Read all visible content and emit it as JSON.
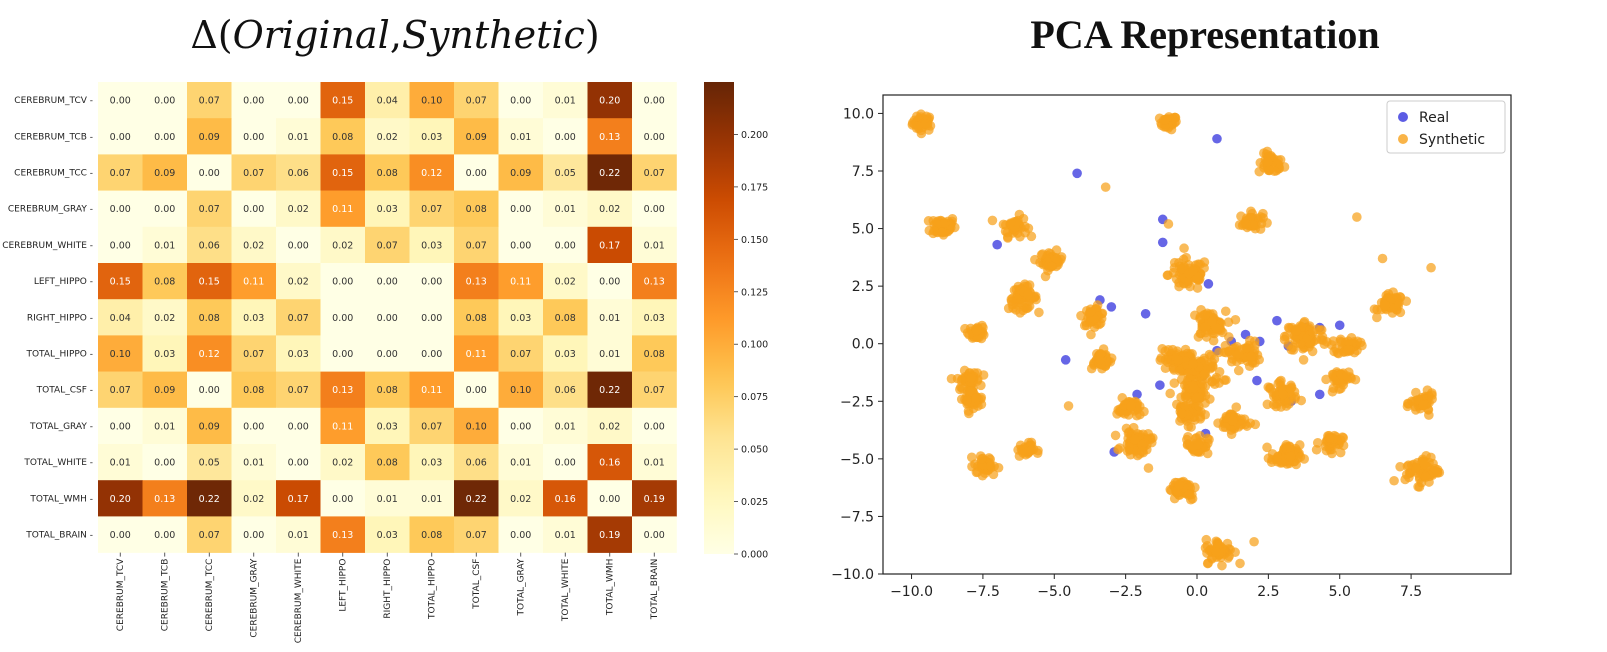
{
  "titles": {
    "left_prefix": "Δ(",
    "left_original": "Original",
    "left_comma": ",",
    "left_synthetic": "Synthetic",
    "left_suffix": ")",
    "right": "PCA Representation"
  },
  "chart_data": [
    {
      "type": "heatmap",
      "title": "Δ(Original, Synthetic)",
      "rows": [
        "CEREBRUM_TCV",
        "CEREBRUM_TCB",
        "CEREBRUM_TCC",
        "CEREBRUM_GRAY",
        "CEREBRUM_WHITE",
        "LEFT_HIPPO",
        "RIGHT_HIPPO",
        "TOTAL_HIPPO",
        "TOTAL_CSF",
        "TOTAL_GRAY",
        "TOTAL_WHITE",
        "TOTAL_WMH",
        "TOTAL_BRAIN"
      ],
      "columns": [
        "CEREBRUM_TCV",
        "CEREBRUM_TCB",
        "CEREBRUM_TCC",
        "CEREBRUM_GRAY",
        "CEREBRUM_WHITE",
        "LEFT_HIPPO",
        "RIGHT_HIPPO",
        "TOTAL_HIPPO",
        "TOTAL_CSF",
        "TOTAL_GRAY",
        "TOTAL_WHITE",
        "TOTAL_WMH",
        "TOTAL_BRAIN"
      ],
      "values": [
        [
          0.0,
          0.0,
          0.07,
          0.0,
          0.0,
          0.15,
          0.04,
          0.1,
          0.07,
          0.0,
          0.01,
          0.2,
          0.0
        ],
        [
          0.0,
          0.0,
          0.09,
          0.0,
          0.01,
          0.08,
          0.02,
          0.03,
          0.09,
          0.01,
          0.0,
          0.13,
          0.0
        ],
        [
          0.07,
          0.09,
          0.0,
          0.07,
          0.06,
          0.15,
          0.08,
          0.12,
          0.0,
          0.09,
          0.05,
          0.22,
          0.07
        ],
        [
          0.0,
          0.0,
          0.07,
          0.0,
          0.02,
          0.11,
          0.03,
          0.07,
          0.08,
          0.0,
          0.01,
          0.02,
          0.0
        ],
        [
          0.0,
          0.01,
          0.06,
          0.02,
          0.0,
          0.02,
          0.07,
          0.03,
          0.07,
          0.0,
          0.0,
          0.17,
          0.01
        ],
        [
          0.15,
          0.08,
          0.15,
          0.11,
          0.02,
          0.0,
          0.0,
          0.0,
          0.13,
          0.11,
          0.02,
          0.0,
          0.13
        ],
        [
          0.04,
          0.02,
          0.08,
          0.03,
          0.07,
          0.0,
          0.0,
          0.0,
          0.08,
          0.03,
          0.08,
          0.01,
          0.03
        ],
        [
          0.1,
          0.03,
          0.12,
          0.07,
          0.03,
          0.0,
          0.0,
          0.0,
          0.11,
          0.07,
          0.03,
          0.01,
          0.08
        ],
        [
          0.07,
          0.09,
          0.0,
          0.08,
          0.07,
          0.13,
          0.08,
          0.11,
          0.0,
          0.1,
          0.06,
          0.22,
          0.07
        ],
        [
          0.0,
          0.01,
          0.09,
          0.0,
          0.0,
          0.11,
          0.03,
          0.07,
          0.1,
          0.0,
          0.01,
          0.02,
          0.0
        ],
        [
          0.01,
          0.0,
          0.05,
          0.01,
          0.0,
          0.02,
          0.08,
          0.03,
          0.06,
          0.01,
          0.0,
          0.16,
          0.01
        ],
        [
          0.2,
          0.13,
          0.22,
          0.02,
          0.17,
          0.0,
          0.01,
          0.01,
          0.22,
          0.02,
          0.16,
          0.0,
          0.19
        ],
        [
          0.0,
          0.0,
          0.07,
          0.0,
          0.01,
          0.13,
          0.03,
          0.08,
          0.07,
          0.0,
          0.01,
          0.19,
          0.0
        ]
      ],
      "colorbar": {
        "min": 0.0,
        "max": 0.225,
        "ticks": [
          "0.000",
          "0.025",
          "0.050",
          "0.075",
          "0.100",
          "0.125",
          "0.150",
          "0.175",
          "0.200"
        ],
        "cmap": [
          "#ffffe5",
          "#fff7bc",
          "#fee391",
          "#fec44f",
          "#fe9929",
          "#ec7014",
          "#cc4c02",
          "#993404",
          "#662506"
        ]
      }
    },
    {
      "type": "scatter",
      "title": "PCA Representation",
      "xlim": [
        -11,
        11
      ],
      "ylim": [
        -10,
        10.8
      ],
      "xticks": [
        "-10.0",
        "-7.5",
        "-5.0",
        "-2.5",
        "0.0",
        "2.5",
        "5.0",
        "7.5"
      ],
      "yticks": [
        "10.0",
        "7.5",
        "5.0",
        "2.5",
        "0.0",
        "-2.5",
        "-5.0",
        "-7.5",
        "-10.0"
      ],
      "legend_position": "top-right",
      "series": [
        {
          "name": "Real",
          "color": "#3333dd",
          "points": [
            [
              0.7,
              8.9
            ],
            [
              -4.2,
              7.4
            ],
            [
              -7.0,
              4.3
            ],
            [
              -1.2,
              5.4
            ],
            [
              -1.2,
              4.4
            ],
            [
              0.4,
              2.6
            ],
            [
              -3.4,
              1.9
            ],
            [
              -3.0,
              1.6
            ],
            [
              -1.8,
              1.3
            ],
            [
              -4.6,
              -0.7
            ],
            [
              -3.3,
              -0.8
            ],
            [
              -1.3,
              -1.8
            ],
            [
              -2.1,
              -2.2
            ],
            [
              -2.9,
              -4.7
            ],
            [
              0.2,
              -1.4
            ],
            [
              0.7,
              -0.3
            ],
            [
              1.7,
              0.4
            ],
            [
              1.2,
              0.1
            ],
            [
              2.2,
              0.1
            ],
            [
              2.8,
              1.0
            ],
            [
              3.2,
              -0.1
            ],
            [
              3.8,
              0.7
            ],
            [
              4.3,
              0.7
            ],
            [
              5.0,
              0.8
            ],
            [
              3.3,
              -2.5
            ],
            [
              4.3,
              -2.2
            ],
            [
              2.1,
              -1.6
            ],
            [
              0.3,
              -3.9
            ],
            [
              1.0,
              -9.0
            ]
          ]
        },
        {
          "name": "Synthetic",
          "color": "#f7a11a",
          "clusters": [
            [
              -9.6,
              9.6,
              0.18,
              40
            ],
            [
              -1.0,
              9.6,
              0.15,
              30
            ],
            [
              2.6,
              7.8,
              0.22,
              40
            ],
            [
              -3.2,
              6.8,
              0.05,
              1
            ],
            [
              -8.9,
              5.1,
              0.22,
              50
            ],
            [
              -6.4,
              5.1,
              0.22,
              40
            ],
            [
              -1.0,
              5.2,
              0.05,
              1
            ],
            [
              1.9,
              5.3,
              0.2,
              40
            ],
            [
              5.6,
              5.5,
              0.05,
              1
            ],
            [
              -5.1,
              3.6,
              0.2,
              40
            ],
            [
              -6.1,
              2.0,
              0.25,
              60
            ],
            [
              -0.3,
              3.0,
              0.35,
              70
            ],
            [
              6.5,
              3.7,
              0.05,
              1
            ],
            [
              6.8,
              1.7,
              0.22,
              50
            ],
            [
              8.2,
              3.3,
              0.05,
              1
            ],
            [
              -7.7,
              0.5,
              0.15,
              30
            ],
            [
              -3.6,
              1.2,
              0.2,
              40
            ],
            [
              0.4,
              0.8,
              0.3,
              60
            ],
            [
              3.8,
              0.3,
              0.35,
              90
            ],
            [
              5.3,
              -0.1,
              0.2,
              40
            ],
            [
              -3.4,
              -0.7,
              0.2,
              40
            ],
            [
              -0.8,
              -0.7,
              0.25,
              50
            ],
            [
              1.6,
              -0.5,
              0.3,
              50
            ],
            [
              0.1,
              -1.2,
              0.4,
              90
            ],
            [
              -8.0,
              -1.6,
              0.2,
              40
            ],
            [
              -7.9,
              -2.4,
              0.2,
              40
            ],
            [
              0.0,
              -2.2,
              0.25,
              50
            ],
            [
              3.0,
              -2.2,
              0.25,
              50
            ],
            [
              5.0,
              -1.5,
              0.2,
              40
            ],
            [
              -2.4,
              -2.8,
              0.2,
              40
            ],
            [
              -0.3,
              -3.0,
              0.25,
              50
            ],
            [
              7.9,
              -2.6,
              0.2,
              50
            ],
            [
              -4.5,
              -2.7,
              0.05,
              1
            ],
            [
              1.3,
              -3.4,
              0.25,
              50
            ],
            [
              0.1,
              -4.0,
              0.05,
              1
            ],
            [
              -2.1,
              -4.3,
              0.25,
              60
            ],
            [
              0.0,
              -4.4,
              0.2,
              40
            ],
            [
              4.7,
              -4.3,
              0.2,
              40
            ],
            [
              -6.0,
              -4.6,
              0.15,
              30
            ],
            [
              3.1,
              -4.9,
              0.25,
              60
            ],
            [
              -7.4,
              -5.3,
              0.2,
              40
            ],
            [
              -1.7,
              -5.4,
              0.05,
              1
            ],
            [
              7.9,
              -5.5,
              0.3,
              60
            ],
            [
              -0.5,
              -6.3,
              0.25,
              50
            ],
            [
              0.8,
              -9.0,
              0.25,
              50
            ],
            [
              2.0,
              -8.6,
              0.05,
              1
            ]
          ]
        }
      ]
    }
  ]
}
